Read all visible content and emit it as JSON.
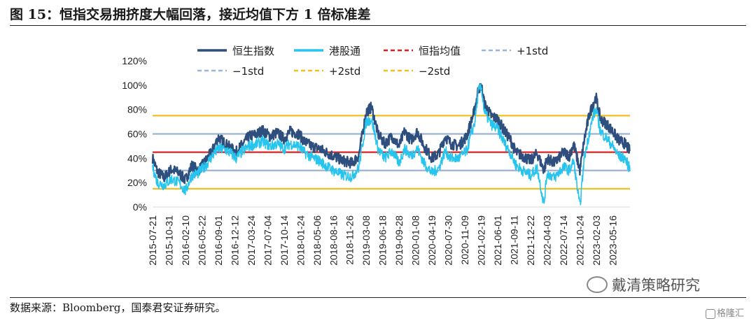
{
  "figure": {
    "title": "图 15：恒指交易拥挤度大幅回落，接近均值下方 1 倍标准差",
    "source": "数据来源：Bloomberg，国泰君安证券研究。",
    "watermark": "戴清策略研究",
    "watermark2": "格隆汇"
  },
  "chart_data": {
    "type": "line",
    "title": "",
    "xlabel": "",
    "ylabel": "",
    "ylim": [
      0,
      120
    ],
    "yticks": [
      0,
      20,
      40,
      60,
      80,
      100,
      120
    ],
    "ytick_labels": [
      "0%",
      "20%",
      "40%",
      "60%",
      "80%",
      "100%",
      "120%"
    ],
    "x_start": "2015-07-21",
    "x_end": "2023-08-31",
    "x_ticks": [
      "2015-07-21",
      "2015-10-31",
      "2016-02-10",
      "2016-05-22",
      "2016-09-01",
      "2016-12-12",
      "2017-03-24",
      "2017-07-04",
      "2017-10-14",
      "2018-01-24",
      "2018-05-06",
      "2018-08-16",
      "2018-11-26",
      "2019-03-08",
      "2019-06-18",
      "2019-09-28",
      "2020-01-08",
      "2020-04-19",
      "2020-07-30",
      "2020-11-09",
      "2021-02-19",
      "2021-06-01",
      "2021-09-11",
      "2021-12-22",
      "2022-04-03",
      "2022-07-14",
      "2022-10-24",
      "2023-02-03",
      "2023-05-16"
    ],
    "legend_position": "top",
    "series": [
      {
        "name": "恒生指数",
        "color": "#2e4e7e",
        "style": "solid",
        "points": [
          [
            "2015-07-21",
            40
          ],
          [
            "2015-08-20",
            29
          ],
          [
            "2015-10-01",
            24
          ],
          [
            "2015-11-15",
            31
          ],
          [
            "2015-12-31",
            28
          ],
          [
            "2016-02-10",
            22
          ],
          [
            "2016-03-20",
            34
          ],
          [
            "2016-05-01",
            30
          ],
          [
            "2016-06-20",
            39
          ],
          [
            "2016-07-25",
            46
          ],
          [
            "2016-09-01",
            57
          ],
          [
            "2016-10-15",
            52
          ],
          [
            "2016-11-20",
            48
          ],
          [
            "2016-12-20",
            45
          ],
          [
            "2017-02-01",
            52
          ],
          [
            "2017-03-10",
            58
          ],
          [
            "2017-05-01",
            60
          ],
          [
            "2017-06-01",
            63
          ],
          [
            "2017-07-20",
            58
          ],
          [
            "2017-09-01",
            61
          ],
          [
            "2017-10-14",
            56
          ],
          [
            "2017-11-20",
            62
          ],
          [
            "2018-01-15",
            60
          ],
          [
            "2018-02-15",
            54
          ],
          [
            "2018-04-01",
            50
          ],
          [
            "2018-05-20",
            48
          ],
          [
            "2018-06-30",
            45
          ],
          [
            "2018-08-16",
            42
          ],
          [
            "2018-10-15",
            38
          ],
          [
            "2018-12-10",
            36
          ],
          [
            "2019-01-20",
            42
          ],
          [
            "2019-03-08",
            78
          ],
          [
            "2019-04-10",
            82
          ],
          [
            "2019-05-20",
            60
          ],
          [
            "2019-06-30",
            52
          ],
          [
            "2019-08-15",
            58
          ],
          [
            "2019-09-28",
            50
          ],
          [
            "2019-11-01",
            62
          ],
          [
            "2019-12-10",
            55
          ],
          [
            "2020-01-20",
            62
          ],
          [
            "2020-03-01",
            50
          ],
          [
            "2020-04-19",
            40
          ],
          [
            "2020-06-01",
            44
          ],
          [
            "2020-07-10",
            58
          ],
          [
            "2020-08-15",
            52
          ],
          [
            "2020-10-01",
            50
          ],
          [
            "2020-11-20",
            58
          ],
          [
            "2021-01-10",
            80
          ],
          [
            "2021-02-01",
            97
          ],
          [
            "2021-02-19",
            100
          ],
          [
            "2021-03-10",
            85
          ],
          [
            "2021-04-20",
            75
          ],
          [
            "2021-06-01",
            72
          ],
          [
            "2021-07-15",
            62
          ],
          [
            "2021-08-20",
            55
          ],
          [
            "2021-09-20",
            45
          ],
          [
            "2021-11-01",
            42
          ],
          [
            "2021-12-22",
            38
          ],
          [
            "2022-02-01",
            44
          ],
          [
            "2022-03-15",
            30
          ],
          [
            "2022-04-03",
            40
          ],
          [
            "2022-05-20",
            36
          ],
          [
            "2022-07-14",
            45
          ],
          [
            "2022-08-20",
            42
          ],
          [
            "2022-09-15",
            52
          ],
          [
            "2022-10-24",
            30
          ],
          [
            "2022-11-20",
            55
          ],
          [
            "2022-12-20",
            75
          ],
          [
            "2023-01-15",
            85
          ],
          [
            "2023-02-01",
            90
          ],
          [
            "2023-03-01",
            72
          ],
          [
            "2023-04-10",
            68
          ],
          [
            "2023-05-16",
            62
          ],
          [
            "2023-06-20",
            55
          ],
          [
            "2023-07-31",
            52
          ],
          [
            "2023-08-31",
            46
          ]
        ]
      },
      {
        "name": "港股通",
        "color": "#27c5ee",
        "style": "solid",
        "points": [
          [
            "2015-07-21",
            33
          ],
          [
            "2015-08-20",
            20
          ],
          [
            "2015-10-01",
            18
          ],
          [
            "2015-11-15",
            23
          ],
          [
            "2015-12-31",
            20
          ],
          [
            "2016-02-10",
            13
          ],
          [
            "2016-03-20",
            26
          ],
          [
            "2016-05-01",
            28
          ],
          [
            "2016-06-20",
            35
          ],
          [
            "2016-07-25",
            42
          ],
          [
            "2016-09-01",
            48
          ],
          [
            "2016-10-15",
            47
          ],
          [
            "2016-11-20",
            44
          ],
          [
            "2016-12-20",
            40
          ],
          [
            "2017-02-01",
            46
          ],
          [
            "2017-03-10",
            50
          ],
          [
            "2017-05-01",
            52
          ],
          [
            "2017-06-01",
            54
          ],
          [
            "2017-07-20",
            50
          ],
          [
            "2017-09-01",
            52
          ],
          [
            "2017-10-14",
            48
          ],
          [
            "2017-11-20",
            52
          ],
          [
            "2018-01-15",
            50
          ],
          [
            "2018-02-15",
            45
          ],
          [
            "2018-04-01",
            41
          ],
          [
            "2018-05-20",
            38
          ],
          [
            "2018-06-30",
            34
          ],
          [
            "2018-08-16",
            30
          ],
          [
            "2018-10-15",
            26
          ],
          [
            "2018-12-10",
            25
          ],
          [
            "2019-01-20",
            32
          ],
          [
            "2019-03-08",
            70
          ],
          [
            "2019-04-10",
            72
          ],
          [
            "2019-05-20",
            48
          ],
          [
            "2019-06-30",
            40
          ],
          [
            "2019-08-15",
            46
          ],
          [
            "2019-09-28",
            36
          ],
          [
            "2019-11-01",
            48
          ],
          [
            "2019-12-10",
            42
          ],
          [
            "2020-01-20",
            48
          ],
          [
            "2020-03-01",
            36
          ],
          [
            "2020-04-19",
            28
          ],
          [
            "2020-06-01",
            32
          ],
          [
            "2020-07-10",
            46
          ],
          [
            "2020-08-15",
            40
          ],
          [
            "2020-10-01",
            40
          ],
          [
            "2020-11-20",
            46
          ],
          [
            "2021-01-10",
            70
          ],
          [
            "2021-02-01",
            95
          ],
          [
            "2021-02-19",
            99
          ],
          [
            "2021-03-10",
            78
          ],
          [
            "2021-04-20",
            68
          ],
          [
            "2021-06-01",
            64
          ],
          [
            "2021-07-15",
            52
          ],
          [
            "2021-08-20",
            44
          ],
          [
            "2021-09-20",
            35
          ],
          [
            "2021-11-01",
            30
          ],
          [
            "2021-12-22",
            26
          ],
          [
            "2022-02-01",
            32
          ],
          [
            "2022-03-15",
            2
          ],
          [
            "2022-04-03",
            28
          ],
          [
            "2022-05-20",
            24
          ],
          [
            "2022-07-14",
            33
          ],
          [
            "2022-08-20",
            30
          ],
          [
            "2022-09-15",
            38
          ],
          [
            "2022-10-24",
            0
          ],
          [
            "2022-11-20",
            40
          ],
          [
            "2022-12-20",
            60
          ],
          [
            "2023-01-15",
            75
          ],
          [
            "2023-02-01",
            80
          ],
          [
            "2023-03-01",
            62
          ],
          [
            "2023-04-10",
            56
          ],
          [
            "2023-05-16",
            50
          ],
          [
            "2023-06-20",
            42
          ],
          [
            "2023-07-31",
            40
          ],
          [
            "2023-08-31",
            31
          ]
        ]
      },
      {
        "name": "恒指均值",
        "color": "#e02020",
        "style": "dashed",
        "value": 45
      },
      {
        "name": "+1std",
        "color": "#9db3d6",
        "style": "dashed",
        "value": 60
      },
      {
        "name": "−1std",
        "color": "#9db3d6",
        "style": "dashed",
        "value": 30
      },
      {
        "name": "+2std",
        "color": "#f0c020",
        "style": "dashed",
        "value": 75
      },
      {
        "name": "−2std",
        "color": "#f0c020",
        "style": "dashed",
        "value": 15
      }
    ]
  }
}
